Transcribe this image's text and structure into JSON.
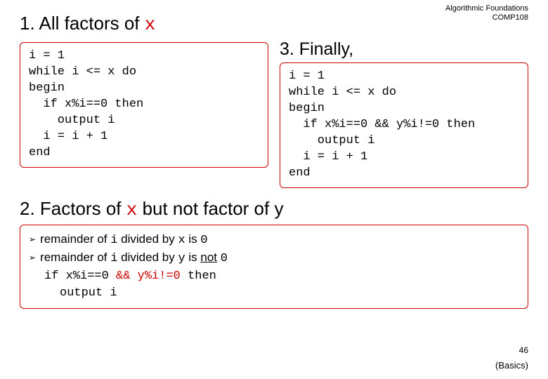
{
  "header": {
    "line1": "Algorithmic Foundations",
    "line2": "COMP108"
  },
  "section1": {
    "title_prefix": "1. All factors of ",
    "var": "x",
    "code": "i = 1\nwhile i <= x do\nbegin\n  if x%i==0 then\n    output i\n  i = i + 1\nend"
  },
  "section3": {
    "title": "3. Finally,",
    "code": "i = 1\nwhile i <= x do\nbegin\n  if x%i==0 && y%i!=0 then\n    output i\n  i = i + 1\nend"
  },
  "section2": {
    "title_p1": "2. Factors of ",
    "title_var": "x",
    "title_p2": " but not factor of y",
    "bullet1_a": "remainder of ",
    "bullet1_i": "i",
    "bullet1_b": " divided by ",
    "bullet1_x": "x",
    "bullet1_c": " is ",
    "bullet1_zero": "0",
    "bullet2_a": "remainder of ",
    "bullet2_i": "i",
    "bullet2_b": " divided by ",
    "bullet2_y": "y",
    "bullet2_c": " is ",
    "bullet2_not": "not",
    "bullet2_sp": " ",
    "bullet2_zero": "0",
    "code_line1_a": "if x%i==0 ",
    "code_line1_b": "&& y%i!=0 ",
    "code_line1_c": "then",
    "code_line2": "output i"
  },
  "footer": {
    "page": "46",
    "label": "(Basics)"
  },
  "colors": {
    "border": "#cc0000",
    "red_text": "#cc0000",
    "background": "#ffffff",
    "text": "#000000"
  }
}
